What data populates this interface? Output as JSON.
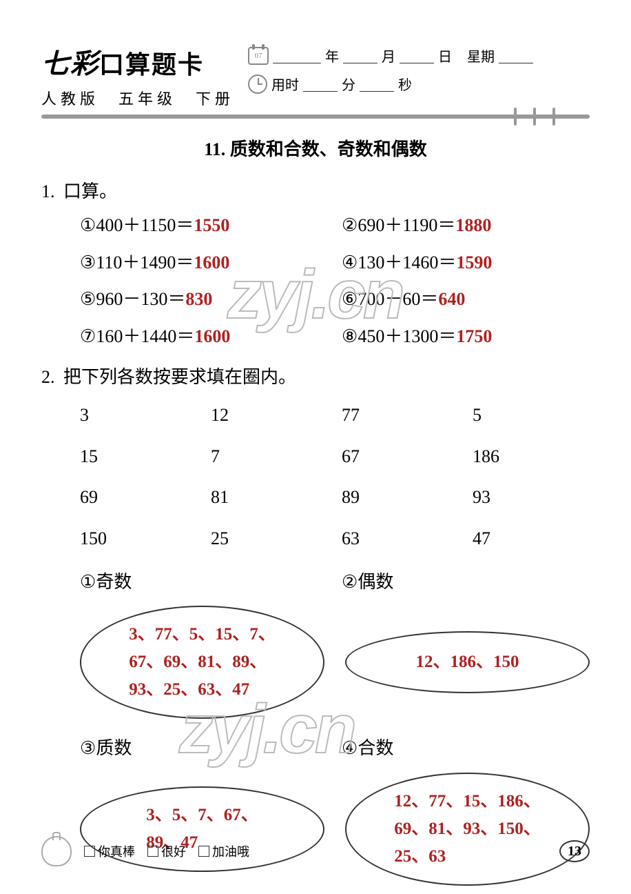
{
  "colors": {
    "answer": "#b02020",
    "text": "#000000",
    "gray": "#999999"
  },
  "header": {
    "title_brush": "七彩",
    "title_rest": "口算题卡",
    "subtitle": "人教版　五年级　下册",
    "cal_text": "07",
    "date_labels": {
      "year": "年",
      "month": "月",
      "day": "日",
      "weekday": "星期"
    },
    "time_labels": {
      "prefix": "用时",
      "min": "分",
      "sec": "秒"
    }
  },
  "section": {
    "number": "11.",
    "title": "质数和合数、奇数和偶数"
  },
  "q1": {
    "num": "1.",
    "label": "口算。",
    "items": [
      {
        "circ": "①",
        "lhs": "400＋1150＝",
        "ans": "1550"
      },
      {
        "circ": "②",
        "lhs": "690＋1190＝",
        "ans": "1880"
      },
      {
        "circ": "③",
        "lhs": "110＋1490＝",
        "ans": "1600"
      },
      {
        "circ": "④",
        "lhs": "130＋1460＝",
        "ans": "1590"
      },
      {
        "circ": "⑤",
        "lhs": "960－130＝",
        "ans": "830"
      },
      {
        "circ": "⑥",
        "lhs": "700－60＝",
        "ans": "640"
      },
      {
        "circ": "⑦",
        "lhs": "160＋1440＝",
        "ans": "1600"
      },
      {
        "circ": "⑧",
        "lhs": "450＋1300＝",
        "ans": "1750"
      }
    ]
  },
  "q2": {
    "num": "2.",
    "label": "把下列各数按要求填在圈内。",
    "numbers": [
      "3",
      "12",
      "77",
      "5",
      "15",
      "7",
      "67",
      "186",
      "69",
      "81",
      "89",
      "93",
      "150",
      "25",
      "63",
      "47"
    ],
    "cats": [
      {
        "circ": "①",
        "label": "奇数",
        "answer": "3、77、5、15、7、\n67、69、81、89、\n93、25、63、47"
      },
      {
        "circ": "②",
        "label": "偶数",
        "answer": "12、186、150"
      },
      {
        "circ": "③",
        "label": "质数",
        "answer": "3、5、7、67、\n89、47"
      },
      {
        "circ": "④",
        "label": "合数",
        "answer": "12、77、15、186、\n69、81、93、150、\n25、63"
      }
    ]
  },
  "footer": {
    "opts": [
      "你真棒",
      "很好",
      "加油哦"
    ],
    "page": "13"
  },
  "watermark": "zyj.cn"
}
